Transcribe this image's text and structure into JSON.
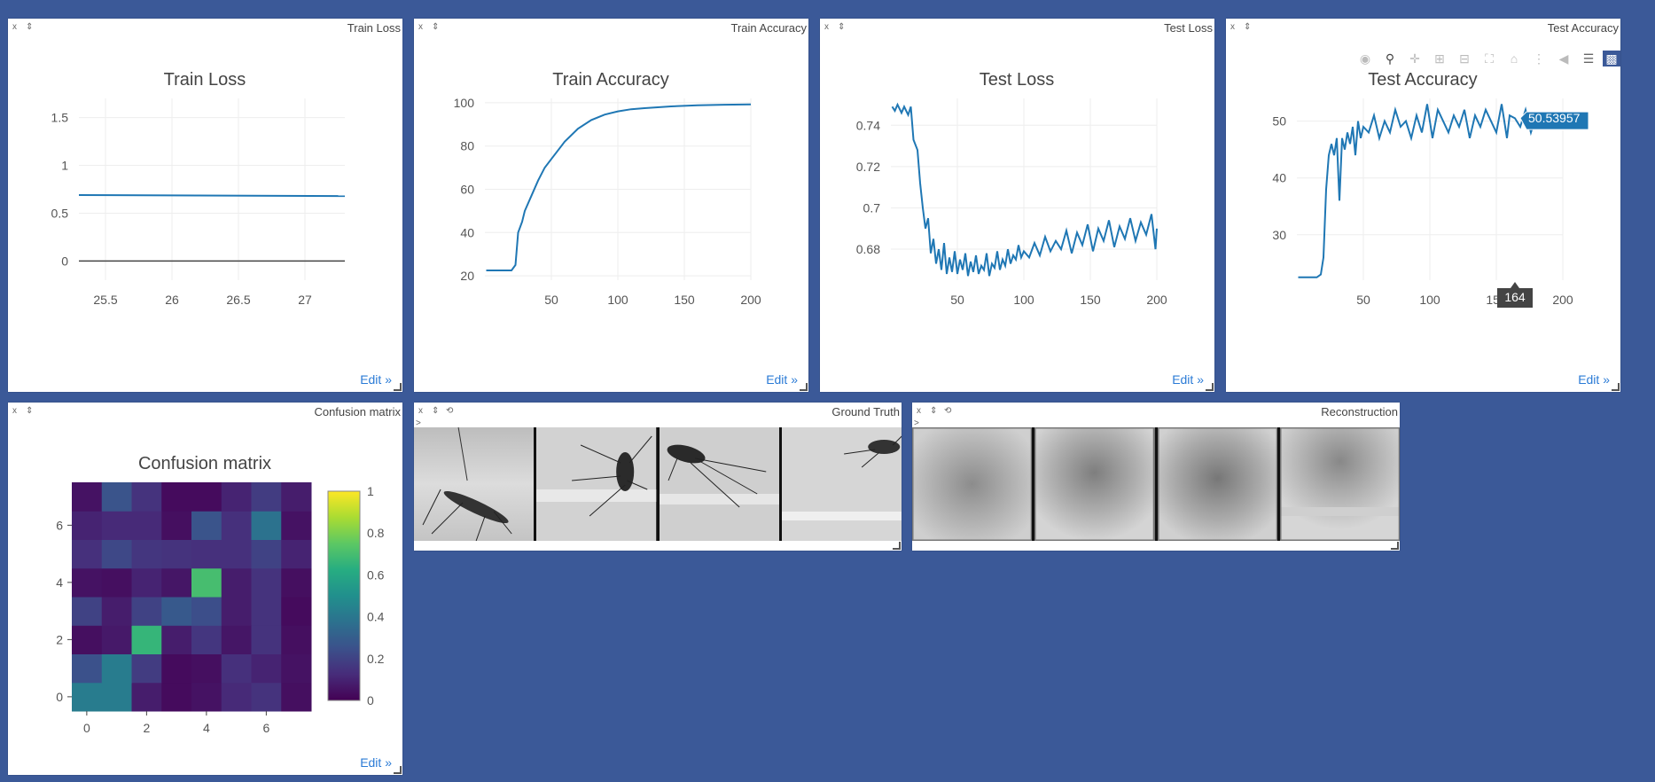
{
  "panes": {
    "train_loss": {
      "close": "x",
      "pin": "⇕",
      "title": "Train Loss",
      "edit": "Edit »"
    },
    "train_acc": {
      "close": "x",
      "pin": "⇕",
      "title": "Train Accuracy",
      "edit": "Edit »"
    },
    "test_loss": {
      "close": "x",
      "pin": "⇕",
      "title": "Test Loss",
      "edit": "Edit »"
    },
    "test_acc": {
      "close": "x",
      "pin": "⇕",
      "title": "Test Accuracy",
      "edit": "Edit »"
    },
    "confusion": {
      "close": "x",
      "pin": "⇕",
      "title": "Confusion matrix",
      "edit": "Edit »"
    },
    "ground_truth": {
      "close": "x",
      "pin": "⇕",
      "reset": "⟲",
      "title": "Ground Truth",
      "prompt": ">"
    },
    "reconstruction": {
      "close": "x",
      "pin": "⇕",
      "reset": "⟲",
      "title": "Reconstruction",
      "prompt": ">"
    }
  },
  "modebar_icons": [
    "camera-icon",
    "zoom-icon",
    "pan-icon",
    "zoom-in-icon",
    "zoom-out-icon",
    "autoscale-icon",
    "home-icon",
    "spike-lines-icon",
    "hover-closest-icon",
    "hover-compare-icon",
    "plotly-logo-icon"
  ],
  "tooltip": {
    "y": "50.53957",
    "x": "164"
  },
  "colors": {
    "background": "#3b5998",
    "line": "#1f77b4",
    "tooltip": "#1f77b4"
  },
  "chart_data": [
    {
      "id": "train_loss",
      "type": "line",
      "title": "Train Loss",
      "xlim": [
        25.3,
        27.3
      ],
      "ylim": [
        -0.2,
        1.7
      ],
      "xticks": [
        "25.5",
        "26",
        "26.5",
        "27"
      ],
      "xtick_values": [
        25.5,
        26,
        26.5,
        27
      ],
      "yticks": [
        "0",
        "0.5",
        "1",
        "1.5"
      ],
      "ytick_values": [
        0,
        0.5,
        1,
        1.5
      ],
      "series": [
        {
          "x": [
            25.3,
            27.3
          ],
          "y": [
            0.69,
            0.68
          ]
        }
      ]
    },
    {
      "id": "train_acc",
      "type": "line",
      "title": "Train Accuracy",
      "xlim": [
        0,
        200
      ],
      "ylim": [
        18,
        102
      ],
      "xticks": [
        "50",
        "100",
        "150",
        "200"
      ],
      "xtick_values": [
        50,
        100,
        150,
        200
      ],
      "yticks": [
        "20",
        "40",
        "60",
        "80",
        "100"
      ],
      "ytick_values": [
        20,
        40,
        60,
        80,
        100
      ],
      "series": [
        {
          "x": [
            1,
            10,
            20,
            23,
            25,
            28,
            30,
            35,
            40,
            45,
            50,
            60,
            70,
            80,
            90,
            100,
            110,
            120,
            140,
            160,
            180,
            200
          ],
          "y": [
            22.5,
            22.5,
            22.5,
            25,
            40,
            45,
            50,
            57,
            64,
            70,
            74,
            82,
            88,
            92,
            94.5,
            96,
            97,
            97.5,
            98.3,
            98.8,
            99.1,
            99.2
          ]
        }
      ]
    },
    {
      "id": "test_loss",
      "type": "line",
      "title": "Test Loss",
      "xlim": [
        0,
        200
      ],
      "ylim": [
        0.665,
        0.753
      ],
      "xticks": [
        "50",
        "100",
        "150",
        "200"
      ],
      "xtick_values": [
        50,
        100,
        150,
        200
      ],
      "yticks": [
        "0.68",
        "0.7",
        "0.72",
        "0.74"
      ],
      "ytick_values": [
        0.68,
        0.7,
        0.72,
        0.74
      ],
      "series": [
        {
          "x": [
            1,
            3,
            5,
            8,
            10,
            13,
            15,
            17,
            20,
            22,
            24,
            26,
            28,
            30,
            32,
            34,
            36,
            38,
            40,
            42,
            44,
            46,
            48,
            50,
            52,
            54,
            56,
            58,
            60,
            62,
            64,
            66,
            68,
            70,
            72,
            74,
            76,
            78,
            80,
            82,
            84,
            86,
            88,
            90,
            92,
            94,
            96,
            98,
            100,
            104,
            108,
            112,
            116,
            120,
            124,
            128,
            132,
            136,
            140,
            144,
            148,
            152,
            156,
            160,
            164,
            168,
            172,
            176,
            180,
            184,
            188,
            192,
            196,
            199,
            200
          ],
          "y": [
            0.749,
            0.747,
            0.75,
            0.746,
            0.749,
            0.745,
            0.749,
            0.733,
            0.728,
            0.712,
            0.7,
            0.69,
            0.695,
            0.678,
            0.685,
            0.673,
            0.68,
            0.67,
            0.683,
            0.668,
            0.676,
            0.669,
            0.679,
            0.668,
            0.675,
            0.67,
            0.678,
            0.667,
            0.674,
            0.669,
            0.677,
            0.668,
            0.672,
            0.67,
            0.678,
            0.667,
            0.673,
            0.671,
            0.679,
            0.67,
            0.675,
            0.672,
            0.68,
            0.673,
            0.677,
            0.675,
            0.682,
            0.676,
            0.679,
            0.676,
            0.683,
            0.677,
            0.686,
            0.679,
            0.684,
            0.68,
            0.689,
            0.678,
            0.688,
            0.682,
            0.692,
            0.679,
            0.69,
            0.684,
            0.694,
            0.681,
            0.691,
            0.685,
            0.695,
            0.684,
            0.693,
            0.687,
            0.697,
            0.68,
            0.69
          ]
        }
      ]
    },
    {
      "id": "test_acc",
      "type": "line",
      "title": "Test Accuracy",
      "xlim": [
        0,
        200
      ],
      "ylim": [
        22,
        54
      ],
      "xticks": [
        "50",
        "100",
        "150",
        "200"
      ],
      "xtick_values": [
        50,
        100,
        150,
        200
      ],
      "yticks": [
        "30",
        "40",
        "50"
      ],
      "ytick_values": [
        30,
        40,
        50
      ],
      "series": [
        {
          "x": [
            1,
            5,
            10,
            15,
            18,
            20,
            22,
            24,
            26,
            28,
            30,
            32,
            34,
            36,
            38,
            40,
            42,
            44,
            46,
            48,
            50,
            54,
            58,
            62,
            66,
            70,
            74,
            78,
            82,
            86,
            90,
            94,
            98,
            102,
            106,
            110,
            114,
            118,
            122,
            126,
            130,
            134,
            138,
            142,
            146,
            150,
            154,
            158,
            160,
            164,
            168,
            172,
            176,
            180,
            184,
            188,
            190
          ],
          "y": [
            22.5,
            22.5,
            22.5,
            22.5,
            23,
            26,
            38,
            44,
            46,
            44,
            47,
            36,
            47,
            45,
            48,
            46,
            49,
            44,
            50,
            47,
            49,
            48,
            51,
            47,
            50,
            48,
            52,
            49,
            50,
            47,
            51,
            48,
            53,
            47,
            52,
            50,
            48,
            51,
            49,
            52,
            47,
            51,
            49,
            52,
            50,
            48,
            53,
            47,
            51,
            50.5,
            49,
            52,
            48,
            51,
            49,
            50,
            49
          ]
        }
      ]
    },
    {
      "id": "confusion",
      "type": "heatmap",
      "title": "Confusion matrix",
      "xlim": [
        -0.5,
        7.5
      ],
      "ylim": [
        -0.5,
        7.5
      ],
      "xticks": [
        "0",
        "2",
        "4",
        "6"
      ],
      "xtick_values": [
        0,
        2,
        4,
        6
      ],
      "yticks": [
        "0",
        "2",
        "4",
        "6"
      ],
      "ytick_values": [
        0,
        2,
        4,
        6
      ],
      "colorbar_ticks": [
        "0",
        "0.2",
        "0.4",
        "0.6",
        "0.8",
        "1"
      ],
      "colorbar_values": [
        0,
        0.2,
        0.4,
        0.6,
        0.8,
        1
      ],
      "z": [
        [
          0.42,
          0.42,
          0.08,
          0.03,
          0.05,
          0.12,
          0.15,
          0.04
        ],
        [
          0.25,
          0.42,
          0.18,
          0.03,
          0.04,
          0.14,
          0.1,
          0.05
        ],
        [
          0.04,
          0.07,
          0.66,
          0.08,
          0.16,
          0.06,
          0.15,
          0.04
        ],
        [
          0.2,
          0.08,
          0.2,
          0.28,
          0.24,
          0.08,
          0.15,
          0.03
        ],
        [
          0.05,
          0.04,
          0.1,
          0.06,
          0.7,
          0.08,
          0.15,
          0.04
        ],
        [
          0.14,
          0.22,
          0.16,
          0.15,
          0.14,
          0.14,
          0.2,
          0.1
        ],
        [
          0.1,
          0.12,
          0.12,
          0.04,
          0.26,
          0.14,
          0.38,
          0.05
        ],
        [
          0.05,
          0.26,
          0.15,
          0.03,
          0.03,
          0.1,
          0.18,
          0.08
        ]
      ]
    }
  ]
}
